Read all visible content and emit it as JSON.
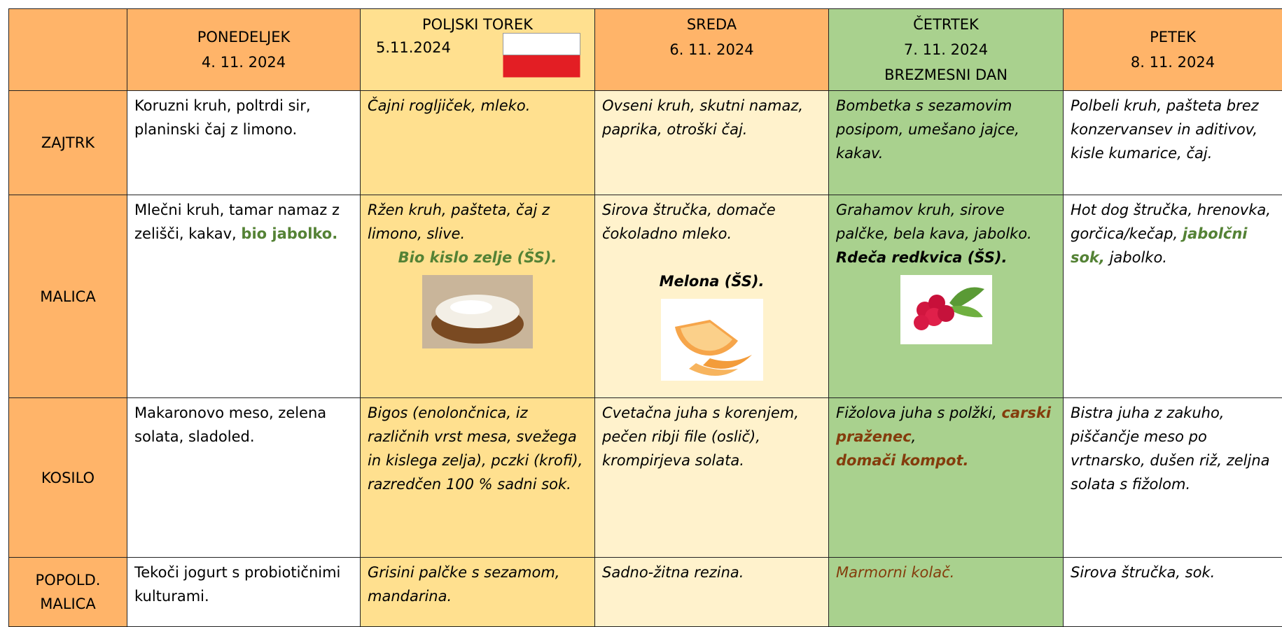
{
  "days": [
    {
      "lines": [
        "PONEDELJEK",
        "4. 11. 2024"
      ]
    },
    {
      "lines": [
        "POLJSKI TOREK",
        "5.11.2024"
      ]
    },
    {
      "lines": [
        "SREDA",
        "6. 11. 2024"
      ]
    },
    {
      "lines": [
        "ČETRTEK",
        "7. 11. 2024",
        "BREZMESNI DAN"
      ]
    },
    {
      "lines": [
        "PETEK",
        "8. 11. 2024"
      ]
    }
  ],
  "meals": [
    {
      "label": "ZAJTRK",
      "cells": [
        [
          "Koruzni kruh, poltrdi sir, planinski čaj z limono."
        ],
        [
          "Čajni rogljiček, mleko."
        ],
        [
          "Ovseni kruh, skutni namaz, paprika, otroški čaj."
        ],
        [
          "Bombetka s sezamovim posipom, umešano jajce, kakav."
        ],
        [
          "Polbeli kruh, pašteta brez konzervansev in aditivov, kisle kumarice, čaj."
        ]
      ]
    },
    {
      "label": "MALICA",
      "cells": [
        [
          "Mlečni kruh, tamar namaz z zelišči, kakav,",
          "bio jabolko."
        ],
        [
          "Ržen kruh, pašteta, čaj z limono, slive.",
          "Bio kislo zelje (ŠS)."
        ],
        [
          "Sirova štručka, domače čokoladno mleko.",
          "Melona (ŠS)."
        ],
        [
          "Grahamov kruh, sirove palčke, bela kava, jabolko.",
          "Rdeča redkvica (ŠS)."
        ],
        [
          "Hot dog štručka, hrenovka, gorčica/kečap,",
          "jabolčni sok,",
          "jabolko."
        ]
      ]
    },
    {
      "label": "KOSILO",
      "cells": [
        [
          "Makaronovo meso, zelena solata, sladoled."
        ],
        [
          "Bigos (enolončnica, iz različnih vrst mesa, svežega in kislega zelja), pczki (krofi), razredčen 100 % sadni sok."
        ],
        [
          "Cvetačna juha s korenjem, pečen ribji file (oslič), krompirjeva solata."
        ],
        [
          "Fižolova juha s polžki,",
          "carski praženec",
          ",",
          "domači kompot."
        ],
        [
          "Bistra juha z zakuho, piščančje meso po vrtnarsko, dušen riž, zeljna solata s fižolom."
        ]
      ]
    },
    {
      "label": "POPOLD. MALICA",
      "cells": [
        [
          "Tekoči jogurt s probiotičnimi kulturami."
        ],
        [
          "Grisini palčke s sezamom, mandarina."
        ],
        [
          "Sadno-žitna rezina."
        ],
        [
          "Marmorni kolač."
        ],
        [
          "Sirova štručka, sok."
        ]
      ]
    }
  ]
}
